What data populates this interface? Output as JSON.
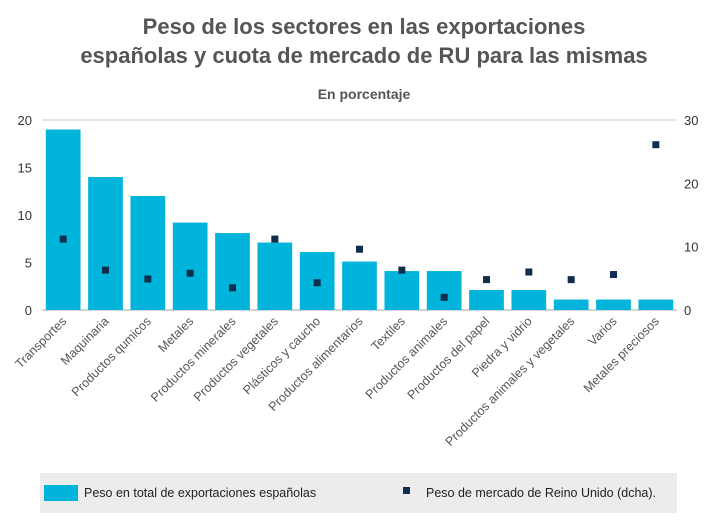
{
  "chart_data": {
    "type": "bar",
    "title_lines": [
      "Peso de los sectores en las exportaciones",
      "españolas y cuota de mercado de RU para las mismas"
    ],
    "subtitle": "En porcentaje",
    "categories": [
      "Transportes",
      "Maquinaria",
      "Productos qumicos",
      "Metales",
      "Productos minerales",
      "Productos vegetales",
      "Plásticos y caucho",
      "Productos alimentarios",
      "Textiles",
      "Productos animales",
      "Productos del papel",
      "Piedra y vidrio",
      "Productos animales y vegetales",
      "Varios",
      "Metales preciosos"
    ],
    "series": [
      {
        "name": "Peso en total de exportaciones españolas",
        "type": "bar",
        "axis": "left",
        "color": "#00B4DB",
        "values": [
          19,
          14,
          12,
          9.2,
          8.1,
          7.1,
          6.1,
          5.1,
          4.1,
          4.1,
          2.1,
          2.1,
          1.1,
          1.1,
          1.1
        ]
      },
      {
        "name": "Peso de mercado de Reino Unido (dcha).",
        "type": "scatter",
        "axis": "right",
        "color": "#0F2D4D",
        "values": [
          11.2,
          6.3,
          4.9,
          5.8,
          3.5,
          11.2,
          4.3,
          9.6,
          6.3,
          2.0,
          4.8,
          6.0,
          4.8,
          5.6,
          26.1
        ]
      }
    ],
    "y_left": {
      "min": 0,
      "max": 20,
      "ticks": [
        0,
        5,
        10,
        15,
        20
      ]
    },
    "y_right": {
      "min": 0,
      "max": 30,
      "ticks": [
        0,
        10,
        20,
        30
      ]
    },
    "grid": false,
    "legend_position": "bottom"
  }
}
